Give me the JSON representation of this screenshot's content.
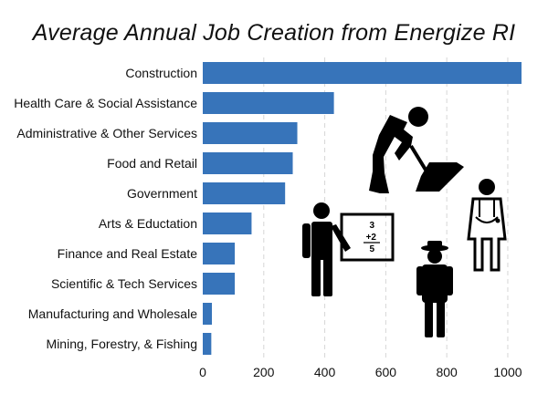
{
  "chart_data": {
    "type": "bar",
    "orientation": "horizontal",
    "title": "Average Annual Job Creation from Energize RI",
    "xlabel": "",
    "ylabel": "",
    "categories": [
      "Construction",
      "Health Care & Social Assistance",
      "Administrative & Other Services",
      "Food and Retail",
      "Government",
      "Arts & Eductation",
      "Finance and Real Estate",
      "Scientific & Tech Services",
      "Manufacturing and Wholesale",
      "Mining, Forestry, & Fishing"
    ],
    "values": [
      1045,
      430,
      310,
      295,
      270,
      160,
      105,
      105,
      30,
      28
    ],
    "xlim": [
      0,
      1060
    ],
    "xticks": [
      0,
      200,
      400,
      600,
      800,
      1000
    ],
    "grid": true,
    "bar_color": "#3774ba",
    "icons": [
      "construction-worker-icon",
      "teacher-icon",
      "doctor-icon",
      "ranger-icon"
    ],
    "board_text": [
      "3",
      "+2",
      "5"
    ]
  }
}
